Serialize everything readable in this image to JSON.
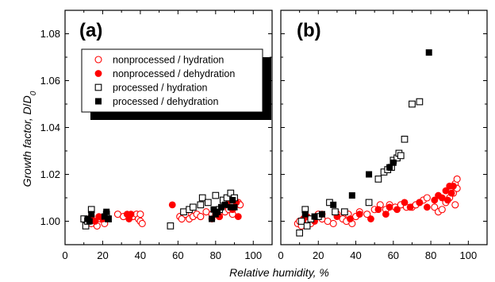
{
  "chart_data": {
    "type": "scatter",
    "xlabel": "Relative humidity, %",
    "ylabel": "Growth factor, D/D0",
    "ylabel_parts": [
      "Growth factor, ",
      "D",
      "/",
      "D",
      "0"
    ],
    "xticks": [
      "0",
      "20",
      "40",
      "60",
      "80",
      "100"
    ],
    "yticks": [
      "1.00",
      "1.02",
      "1.04",
      "1.06",
      "1.08"
    ],
    "xlim": [
      0,
      110
    ],
    "ylim": [
      0.99,
      1.09
    ],
    "legend": [
      {
        "label": "nonprocessed / hydration",
        "marker": "open-circle",
        "color": "#ff0000"
      },
      {
        "label": "nonprocessed / dehydration",
        "marker": "filled-circle",
        "color": "#ff0000"
      },
      {
        "label": "processed / hydration",
        "marker": "open-square",
        "color": "#000000"
      },
      {
        "label": "processed / dehydration",
        "marker": "filled-square",
        "color": "#000000"
      }
    ],
    "panels": [
      {
        "label": "(a)",
        "series": [
          {
            "name": "nonprocessed / hydration",
            "points": [
              [
                12,
                1.0
              ],
              [
                14,
                0.999
              ],
              [
                17,
                0.998
              ],
              [
                19,
                1.001
              ],
              [
                21,
                0.999
              ],
              [
                28,
                1.003
              ],
              [
                31,
                1.002
              ],
              [
                36,
                1.002
              ],
              [
                38,
                1.003
              ],
              [
                39,
                1.001
              ],
              [
                40,
                1.0
              ],
              [
                41,
                0.999
              ],
              [
                40,
                1.003
              ],
              [
                61,
                1.002
              ],
              [
                62,
                1.001
              ],
              [
                64,
                1.003
              ],
              [
                66,
                1.001
              ],
              [
                68,
                1.002
              ],
              [
                70,
                1.003
              ],
              [
                72,
                1.002
              ],
              [
                75,
                1.004
              ],
              [
                78,
                1.003
              ],
              [
                82,
                1.002
              ],
              [
                85,
                1.004
              ],
              [
                87,
                1.005
              ],
              [
                89,
                1.003
              ],
              [
                92,
                1.008
              ],
              [
                93,
                1.007
              ]
            ]
          },
          {
            "name": "nonprocessed / dehydration",
            "points": [
              [
                14,
                1.002
              ],
              [
                16,
                1.0
              ],
              [
                18,
                1.002
              ],
              [
                20,
                1.001
              ],
              [
                33,
                1.003
              ],
              [
                34,
                1.001
              ],
              [
                35,
                1.003
              ],
              [
                57,
                1.007
              ],
              [
                78,
                1.001
              ],
              [
                80,
                1.003
              ],
              [
                82,
                1.002
              ],
              [
                86,
                1.008
              ],
              [
                88,
                1.006
              ],
              [
                91,
                1.008
              ],
              [
                92,
                1.002
              ],
              [
                89,
                1.005
              ]
            ]
          },
          {
            "name": "processed / hydration",
            "points": [
              [
                10,
                1.001
              ],
              [
                11,
                0.998
              ],
              [
                12,
                1.0
              ],
              [
                14,
                1.005
              ],
              [
                22,
                1.003
              ],
              [
                23,
                1.001
              ],
              [
                56,
                0.998
              ],
              [
                63,
                1.004
              ],
              [
                66,
                1.005
              ],
              [
                68,
                1.006
              ],
              [
                72,
                1.007
              ],
              [
                73,
                1.01
              ],
              [
                76,
                1.008
              ],
              [
                80,
                1.011
              ],
              [
                82,
                1.005
              ],
              [
                84,
                1.009
              ],
              [
                86,
                1.01
              ],
              [
                88,
                1.012
              ],
              [
                90,
                1.01
              ]
            ]
          },
          {
            "name": "processed / dehydration",
            "points": [
              [
                12,
                1.001
              ],
              [
                13,
                1.0
              ],
              [
                14,
                1.003
              ],
              [
                21,
                1.002
              ],
              [
                22,
                1.004
              ],
              [
                23,
                1.001
              ],
              [
                78,
                1.001
              ],
              [
                79,
                1.005
              ],
              [
                80,
                1.003
              ],
              [
                81,
                1.004
              ],
              [
                83,
                1.006
              ],
              [
                85,
                1.007
              ],
              [
                88,
                1.006
              ],
              [
                89,
                1.009
              ],
              [
                90,
                1.006
              ]
            ]
          }
        ]
      },
      {
        "label": "(b)",
        "series": [
          {
            "name": "nonprocessed / hydration",
            "points": [
              [
                9,
                0.999
              ],
              [
                10,
                1.0
              ],
              [
                11,
                0.998
              ],
              [
                13,
                1.001
              ],
              [
                15,
                1.0
              ],
              [
                16,
                0.999
              ],
              [
                18,
                1.001
              ],
              [
                20,
                1.003
              ],
              [
                22,
                1.001
              ],
              [
                25,
                1.0
              ],
              [
                28,
                0.999
              ],
              [
                30,
                1.003
              ],
              [
                33,
                1.001
              ],
              [
                35,
                1.0
              ],
              [
                36,
                1.003
              ],
              [
                38,
                0.999
              ],
              [
                40,
                1.002
              ],
              [
                42,
                1.004
              ],
              [
                46,
                1.003
              ],
              [
                50,
                1.005
              ],
              [
                53,
                1.007
              ],
              [
                56,
                1.005
              ],
              [
                58,
                1.007
              ],
              [
                61,
                1.006
              ],
              [
                64,
                1.007
              ],
              [
                67,
                1.006
              ],
              [
                70,
                1.006
              ],
              [
                72,
                1.007
              ],
              [
                74,
                1.008
              ],
              [
                76,
                1.009
              ],
              [
                78,
                1.01
              ],
              [
                82,
                1.006
              ],
              [
                84,
                1.004
              ],
              [
                86,
                1.005
              ],
              [
                88,
                1.008
              ],
              [
                90,
                1.01
              ],
              [
                92,
                1.012
              ],
              [
                93,
                1.016
              ],
              [
                94,
                1.018
              ],
              [
                93,
                1.007
              ],
              [
                94,
                1.014
              ]
            ]
          },
          {
            "name": "nonprocessed / dehydration",
            "points": [
              [
                12,
                1.001
              ],
              [
                14,
                1.002
              ],
              [
                18,
                1.0
              ],
              [
                22,
                1.003
              ],
              [
                30,
                1.002
              ],
              [
                37,
                1.001
              ],
              [
                42,
                1.003
              ],
              [
                48,
                1.001
              ],
              [
                52,
                1.005
              ],
              [
                56,
                1.003
              ],
              [
                58,
                1.006
              ],
              [
                62,
                1.005
              ],
              [
                66,
                1.008
              ],
              [
                69,
                1.006
              ],
              [
                74,
                1.008
              ],
              [
                78,
                1.006
              ],
              [
                82,
                1.009
              ],
              [
                84,
                1.011
              ],
              [
                86,
                1.01
              ],
              [
                88,
                1.013
              ],
              [
                89,
                1.009
              ],
              [
                90,
                1.015
              ],
              [
                91,
                1.012
              ],
              [
                92,
                1.015
              ]
            ]
          },
          {
            "name": "processed / hydration",
            "points": [
              [
                10,
                0.995
              ],
              [
                11,
                1.0
              ],
              [
                13,
                1.005
              ],
              [
                14,
                0.998
              ],
              [
                16,
                1.001
              ],
              [
                20,
                1.002
              ],
              [
                26,
                1.008
              ],
              [
                29,
                1.004
              ],
              [
                34,
                1.004
              ],
              [
                47,
                1.008
              ],
              [
                52,
                1.018
              ],
              [
                55,
                1.021
              ],
              [
                57,
                1.022
              ],
              [
                59,
                1.023
              ],
              [
                60,
                1.026
              ],
              [
                62,
                1.027
              ],
              [
                63,
                1.029
              ],
              [
                64,
                1.028
              ],
              [
                66,
                1.035
              ],
              [
                70,
                1.05
              ],
              [
                74,
                1.051
              ]
            ]
          },
          {
            "name": "processed / dehydration",
            "points": [
              [
                13,
                1.003
              ],
              [
                18,
                1.002
              ],
              [
                22,
                1.003
              ],
              [
                28,
                1.007
              ],
              [
                38,
                1.011
              ],
              [
                47,
                1.02
              ],
              [
                58,
                1.023
              ],
              [
                60,
                1.025
              ],
              [
                79,
                1.072
              ]
            ]
          }
        ]
      }
    ]
  }
}
